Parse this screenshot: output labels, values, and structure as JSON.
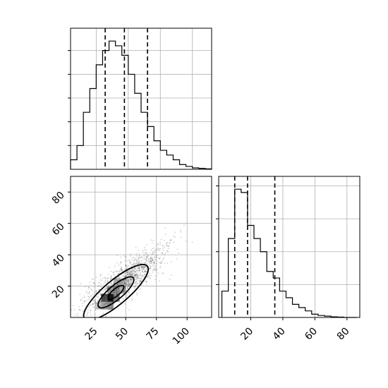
{
  "chart_data": {
    "type": "corner",
    "parameters": [
      {
        "histogram": {
          "type": "histogram",
          "bin_edges": [
            5,
            10,
            15,
            20,
            25,
            30,
            35,
            40,
            45,
            50,
            55,
            60,
            65,
            70,
            75,
            80,
            85,
            90,
            95,
            100,
            105,
            110,
            115
          ],
          "counts": [
            2,
            5,
            12,
            17,
            22,
            25,
            27,
            26,
            24,
            20,
            16,
            12,
            9,
            6,
            4,
            3,
            2,
            1,
            0.6,
            0.3,
            0.2,
            0.1
          ],
          "quantiles": [
            32,
            47,
            65
          ],
          "xlim": [
            5,
            115
          ],
          "grid": true
        }
      },
      {
        "histogram": {
          "type": "histogram",
          "bin_edges": [
            2,
            6,
            10,
            14,
            18,
            22,
            26,
            30,
            34,
            38,
            42,
            46,
            50,
            54,
            58,
            62,
            66,
            70,
            74,
            78,
            82,
            86
          ],
          "counts": [
            4,
            12,
            19.5,
            19,
            14,
            12,
            10,
            7,
            6,
            4,
            3,
            2,
            1.5,
            1,
            0.5,
            0.3,
            0.2,
            0.1,
            0.05,
            0,
            0
          ],
          "quantiles": [
            10,
            18,
            35
          ],
          "xlim": [
            0,
            88
          ],
          "grid": true
        }
      }
    ],
    "joint": {
      "type": "scatter-density",
      "xlim": [
        5,
        120
      ],
      "ylim": [
        0,
        90
      ],
      "x_ticks": [
        25,
        50,
        75,
        100
      ],
      "y_ticks": [
        20,
        40,
        60,
        80
      ],
      "density_peak": [
        34,
        12
      ],
      "contour_levels": 3,
      "grid": true
    },
    "marginal_y": {
      "x_ticks": [
        20,
        40,
        60,
        80
      ]
    }
  }
}
